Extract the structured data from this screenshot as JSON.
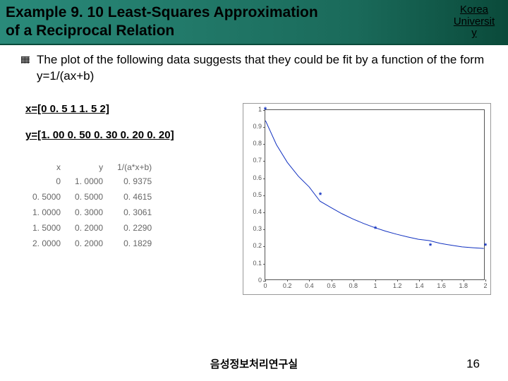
{
  "header": {
    "title_line1": "Example 9. 10 Least-Squares Approximation",
    "title_line2": "of a Reciprocal Relation",
    "uni_line1": "Korea",
    "uni_line2": "Universit",
    "uni_line3": "y"
  },
  "paragraph": "The plot of the following data suggests that they could be fit by a function of the form y=1/(ax+b)",
  "arrays": {
    "x_label": "x=[0   0. 5   1   1. 5   2]",
    "y_label": "y=[1. 00  0. 50  0. 30  0. 20  0. 20]"
  },
  "table": {
    "headers": [
      "x",
      "y",
      "1/(a*x+b)"
    ],
    "rows": [
      [
        "0",
        "1. 0000",
        "0. 9375"
      ],
      [
        "0. 5000",
        "0. 5000",
        "0. 4615"
      ],
      [
        "1. 0000",
        "0. 3000",
        "0. 3061"
      ],
      [
        "1. 5000",
        "0. 2000",
        "0. 2290"
      ],
      [
        "2. 0000",
        "0. 2000",
        "0. 1829"
      ]
    ]
  },
  "chart": {
    "type": "line-scatter",
    "xlim": [
      0,
      2
    ],
    "ylim": [
      0,
      1
    ],
    "xticks": [
      0,
      0.2,
      0.4,
      0.6,
      0.8,
      1,
      1.2,
      1.4,
      1.6,
      1.8,
      2
    ],
    "yticks": [
      0,
      0.1,
      0.2,
      0.3,
      0.4,
      0.5,
      0.6,
      0.7,
      0.8,
      0.9,
      1
    ],
    "xtick_labels": [
      "0",
      "0.2",
      "0.4",
      "0.6",
      "0.8",
      "1",
      "1.2",
      "1.4",
      "1.6",
      "1.8",
      "2"
    ],
    "ytick_labels": [
      "0",
      "0.1",
      "0.2",
      "0.3",
      "0.4",
      "0.5",
      "0.6",
      "0.7",
      "0.8",
      "0.9",
      "1"
    ],
    "scatter": {
      "x": [
        0,
        0.5,
        1.0,
        1.5,
        2.0
      ],
      "y": [
        1.0,
        0.5,
        0.3,
        0.2,
        0.2
      ],
      "marker_color": "#1030c0",
      "marker": "*"
    },
    "curve": {
      "x": [
        0,
        0.1,
        0.2,
        0.3,
        0.4,
        0.5,
        0.6,
        0.7,
        0.8,
        0.9,
        1.0,
        1.1,
        1.2,
        1.3,
        1.4,
        1.5,
        1.6,
        1.7,
        1.8,
        1.9,
        2.0
      ],
      "y": [
        0.9375,
        0.796,
        0.691,
        0.61,
        0.546,
        0.4615,
        0.424,
        0.388,
        0.357,
        0.33,
        0.3061,
        0.285,
        0.267,
        0.251,
        0.237,
        0.229,
        0.213,
        0.202,
        0.192,
        0.187,
        0.1829
      ],
      "line_color": "#1030c0",
      "line_width": 1
    },
    "background_color": "#ffffff",
    "axis_color": "#555555",
    "tick_fontsize": 9
  },
  "footer": {
    "lab": "음성정보처리연구실",
    "page": "16"
  }
}
